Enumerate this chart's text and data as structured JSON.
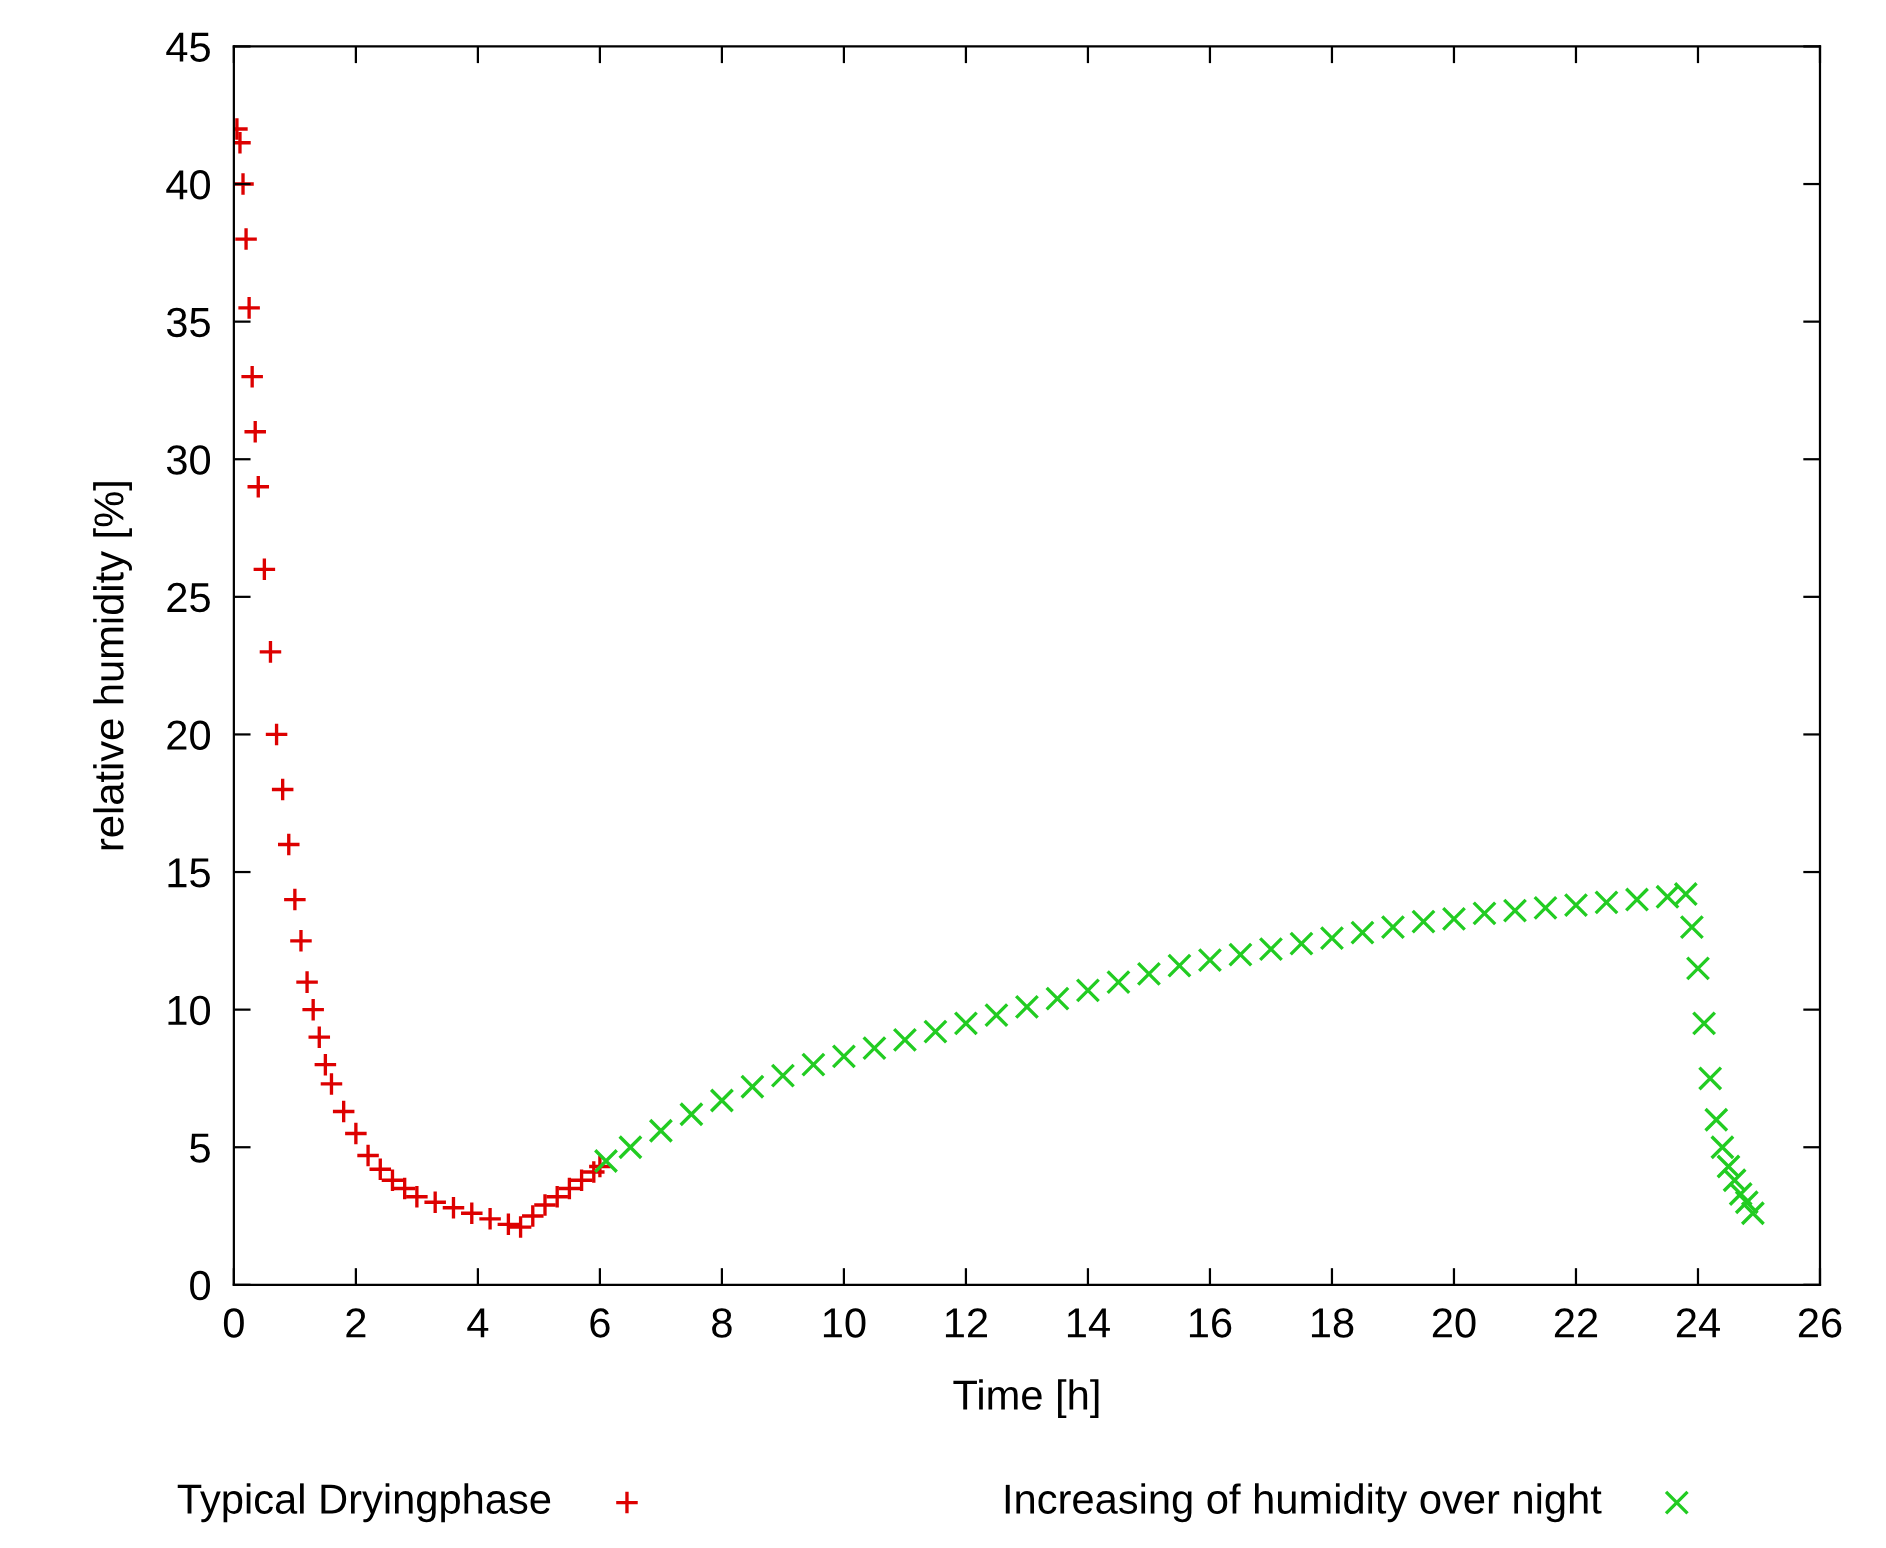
{
  "chart_data": {
    "type": "scatter",
    "xlabel": "Time [h]",
    "ylabel": "relative humidity [%]",
    "xlim": [
      0,
      26
    ],
    "xticks": [
      0,
      2,
      4,
      6,
      8,
      10,
      12,
      14,
      16,
      18,
      20,
      22,
      24,
      26
    ],
    "ylim": [
      0,
      45
    ],
    "yticks": [
      0,
      5,
      10,
      15,
      20,
      25,
      30,
      35,
      40,
      45
    ],
    "grid": false,
    "legend": "bottom",
    "series": [
      {
        "name": "Typical Dryingphase",
        "color": "#dd0000",
        "marker": "plus",
        "x": [
          0.05,
          0.1,
          0.15,
          0.2,
          0.25,
          0.3,
          0.35,
          0.4,
          0.5,
          0.6,
          0.7,
          0.8,
          0.9,
          1.0,
          1.1,
          1.2,
          1.3,
          1.4,
          1.5,
          1.6,
          1.8,
          2.0,
          2.2,
          2.4,
          2.6,
          2.8,
          3.0,
          3.3,
          3.6,
          3.9,
          4.2,
          4.5,
          4.7,
          4.9,
          5.1,
          5.3,
          5.5,
          5.7,
          5.9,
          6.0
        ],
        "values": [
          42,
          41.5,
          40,
          38,
          35.5,
          33,
          31,
          29,
          26,
          23,
          20,
          18,
          16,
          14,
          12.5,
          11,
          10,
          9,
          8,
          7.3,
          6.3,
          5.5,
          4.7,
          4.2,
          3.8,
          3.5,
          3.2,
          3.0,
          2.8,
          2.6,
          2.4,
          2.2,
          2.1,
          2.5,
          2.9,
          3.2,
          3.5,
          3.8,
          4.1,
          4.3
        ]
      },
      {
        "name": "Increasing of humidity over night",
        "color": "#22cc22",
        "marker": "cross",
        "x": [
          6.1,
          6.5,
          7,
          7.5,
          8,
          8.5,
          9,
          9.5,
          10,
          10.5,
          11,
          11.5,
          12,
          12.5,
          13,
          13.5,
          14,
          14.5,
          15,
          15.5,
          16,
          16.5,
          17,
          17.5,
          18,
          18.5,
          19,
          19.5,
          20,
          20.5,
          21,
          21.5,
          22,
          22.5,
          23,
          23.5,
          23.8,
          23.9,
          24.0,
          24.1,
          24.2,
          24.3,
          24.4,
          24.5,
          24.6,
          24.7,
          24.8,
          24.9
        ],
        "values": [
          4.5,
          5.0,
          5.6,
          6.2,
          6.7,
          7.2,
          7.6,
          8.0,
          8.3,
          8.6,
          8.9,
          9.2,
          9.5,
          9.8,
          10.1,
          10.4,
          10.7,
          11.0,
          11.3,
          11.6,
          11.8,
          12.0,
          12.2,
          12.4,
          12.6,
          12.8,
          13.0,
          13.2,
          13.3,
          13.5,
          13.6,
          13.7,
          13.8,
          13.9,
          14.0,
          14.1,
          14.2,
          13.0,
          11.5,
          9.5,
          7.5,
          6.0,
          5.0,
          4.3,
          3.8,
          3.3,
          3.0,
          2.6
        ]
      }
    ]
  }
}
